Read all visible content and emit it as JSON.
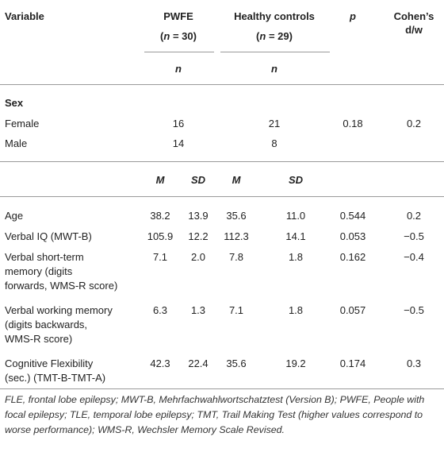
{
  "header": {
    "variable": "Variable",
    "group1_name": "PWFE",
    "group1_n_pre": "(",
    "group1_n_italic": "n",
    "group1_n_post": " = 30)",
    "group2_name": "Healthy controls",
    "group2_n_pre": "(",
    "group2_n_italic": "n",
    "group2_n_post": " = 29)",
    "p": "p",
    "effect_line1": "Cohen’s",
    "effect_line2": "d/w",
    "count_label": "n"
  },
  "sex": {
    "heading": "Sex",
    "rows": [
      {
        "label": "Female",
        "g1": "16",
        "g2": "21",
        "p": "0.18",
        "effect": "0.2"
      },
      {
        "label": "Male",
        "g1": "14",
        "g2": "8",
        "p": "",
        "effect": ""
      }
    ]
  },
  "stats_header": {
    "m": "M",
    "sd": "SD"
  },
  "rows": [
    {
      "label_lines": [
        "Age"
      ],
      "m1": "38.2",
      "sd1": "13.9",
      "m2": "35.6",
      "sd2": "11.0",
      "p": "0.544",
      "effect": "0.2"
    },
    {
      "label_lines": [
        "Verbal IQ (MWT-B)"
      ],
      "m1": "105.9",
      "sd1": "12.2",
      "m2": "112.3",
      "sd2": "14.1",
      "p": "0.053",
      "effect": "−0.5"
    },
    {
      "label_lines": [
        "Verbal short-term",
        "memory (digits",
        "forwards, WMS-R score)"
      ],
      "m1": "7.1",
      "sd1": "2.0",
      "m2": "7.8",
      "sd2": "1.8",
      "p": "0.162",
      "effect": "−0.4"
    },
    {
      "label_lines": [
        "Verbal working memory",
        "(digits backwards,",
        "WMS-R score)"
      ],
      "m1": "6.3",
      "sd1": "1.3",
      "m2": "7.1",
      "sd2": "1.8",
      "p": "0.057",
      "effect": "−0.5"
    },
    {
      "label_lines": [
        "Cognitive Flexibility",
        "(sec.) (TMT-B-TMT-A)"
      ],
      "m1": "42.3",
      "sd1": "22.4",
      "m2": "35.6",
      "sd2": "19.2",
      "p": "0.174",
      "effect": "0.3"
    }
  ],
  "footnote": "FLE, frontal lobe epilepsy; MWT-B, Mehrfachwahlwortschatztest (Version B); PWFE, People with focal epilepsy; TLE, temporal lobe epilepsy; TMT, Trail Making Test (higher values correspond to worse performance); WMS-R, Wechsler Memory Scale Revised."
}
